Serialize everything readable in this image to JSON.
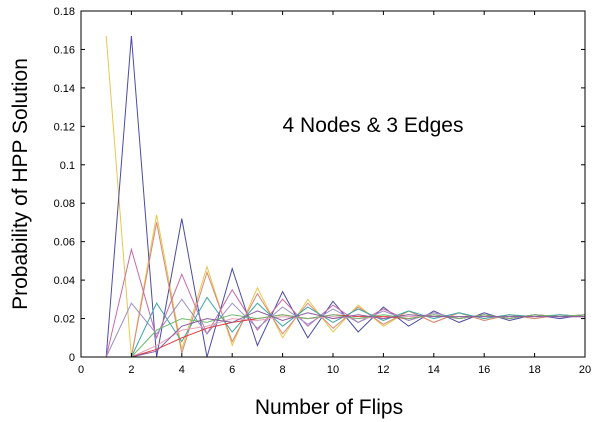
{
  "chart_data": {
    "type": "line",
    "title": "",
    "annotation": "4 Nodes & 3 Edges",
    "xlabel": "Number of Flips",
    "ylabel": "Probability of HPP Solution",
    "xlim": [
      0,
      20
    ],
    "ylim": [
      0,
      0.18
    ],
    "xticks": [
      0,
      2,
      4,
      6,
      8,
      10,
      12,
      14,
      16,
      18,
      20
    ],
    "yticks": [
      0,
      0.02,
      0.04,
      0.06,
      0.08,
      0.1,
      0.12,
      0.14,
      0.16,
      0.18
    ],
    "xtick_labels": [
      "0",
      "2",
      "4",
      "6",
      "8",
      "10",
      "12",
      "14",
      "16",
      "18",
      "20"
    ],
    "ytick_labels": [
      "0",
      "0.02",
      "0.04",
      "0.06",
      "0.08",
      "0.1",
      "0.12",
      "0.14",
      "0.16",
      "0.18"
    ],
    "grid": false,
    "x": [
      1,
      2,
      3,
      4,
      5,
      6,
      7,
      8,
      9,
      10,
      11,
      12,
      13,
      14,
      15,
      16,
      17,
      18,
      19,
      20
    ],
    "series": [
      {
        "color": "#e6c84a",
        "values": [
          0.167,
          0.0,
          0.074,
          0.004,
          0.047,
          0.006,
          0.036,
          0.01,
          0.03,
          0.013,
          0.027,
          0.016,
          0.024,
          0.018,
          0.023,
          0.019,
          0.022,
          0.02,
          0.022,
          0.021
        ]
      },
      {
        "color": "#4b4ba8",
        "values": [
          0.0,
          0.167,
          0.0,
          0.072,
          0.0,
          0.046,
          0.006,
          0.034,
          0.01,
          0.029,
          0.013,
          0.026,
          0.016,
          0.024,
          0.018,
          0.023,
          0.019,
          0.022,
          0.02,
          0.022
        ]
      },
      {
        "color": "#d9867a",
        "values": [
          0.0,
          0.0,
          0.07,
          0.002,
          0.044,
          0.008,
          0.033,
          0.012,
          0.028,
          0.015,
          0.026,
          0.017,
          0.024,
          0.018,
          0.023,
          0.019,
          0.022,
          0.02,
          0.022,
          0.021
        ]
      },
      {
        "color": "#c76ba8",
        "values": [
          0.0,
          0.056,
          0.01,
          0.043,
          0.012,
          0.035,
          0.014,
          0.03,
          0.016,
          0.027,
          0.018,
          0.025,
          0.019,
          0.023,
          0.02,
          0.022,
          0.02,
          0.022,
          0.021,
          0.021
        ]
      },
      {
        "color": "#9b8fc7",
        "values": [
          0.0,
          0.028,
          0.012,
          0.03,
          0.012,
          0.028,
          0.015,
          0.026,
          0.017,
          0.025,
          0.018,
          0.024,
          0.019,
          0.023,
          0.02,
          0.022,
          0.02,
          0.022,
          0.021,
          0.021
        ]
      },
      {
        "color": "#3aa6a6",
        "values": [
          0.0,
          0.0,
          0.028,
          0.008,
          0.031,
          0.013,
          0.028,
          0.016,
          0.026,
          0.018,
          0.025,
          0.019,
          0.024,
          0.02,
          0.023,
          0.02,
          0.022,
          0.021,
          0.022,
          0.021
        ]
      },
      {
        "color": "#e8a2b8",
        "values": [
          0.0,
          0.0,
          0.006,
          0.014,
          0.016,
          0.02,
          0.019,
          0.021,
          0.02,
          0.021,
          0.02,
          0.021,
          0.021,
          0.021,
          0.021,
          0.021,
          0.021,
          0.021,
          0.021,
          0.021
        ]
      },
      {
        "color": "#e03a3a",
        "values": [
          0.0,
          0.0,
          0.004,
          0.01,
          0.015,
          0.018,
          0.02,
          0.022,
          0.02,
          0.022,
          0.021,
          0.021,
          0.02,
          0.022,
          0.02,
          0.022,
          0.02,
          0.022,
          0.021,
          0.022
        ]
      },
      {
        "color": "#6fb86f",
        "values": [
          0.0,
          0.0,
          0.014,
          0.02,
          0.018,
          0.022,
          0.02,
          0.022,
          0.02,
          0.022,
          0.02,
          0.022,
          0.02,
          0.022,
          0.02,
          0.022,
          0.02,
          0.022,
          0.021,
          0.022
        ]
      },
      {
        "color": "#8a5aa0",
        "values": [
          0.0,
          0.0,
          0.003,
          0.016,
          0.02,
          0.018,
          0.024,
          0.019,
          0.023,
          0.02,
          0.022,
          0.02,
          0.022,
          0.021,
          0.021,
          0.021,
          0.021,
          0.021,
          0.021,
          0.021
        ]
      }
    ]
  }
}
